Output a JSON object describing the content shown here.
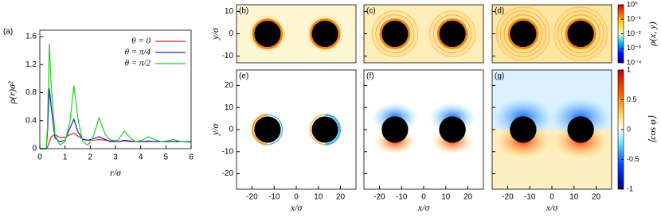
{
  "chart_data": [
    {
      "type": "line",
      "panel_label": "(a)",
      "xlabel": "r/σ",
      "ylabel": "ρ(r)σ²",
      "x": [
        0,
        0.25,
        0.3,
        0.38,
        0.45,
        0.6,
        0.8,
        1.0,
        1.2,
        1.35,
        1.5,
        1.7,
        1.9,
        2.1,
        2.35,
        2.6,
        2.8,
        3.1,
        3.35,
        3.6,
        3.8,
        4.05,
        4.3,
        4.55,
        4.8,
        5.05,
        5.3,
        5.6,
        6
      ],
      "series": [
        {
          "name": "θ = 0",
          "color": "#e02020",
          "values": [
            0,
            0,
            0.02,
            0.1,
            0.17,
            0.2,
            0.16,
            0.16,
            0.2,
            0.22,
            0.18,
            0.14,
            0.12,
            0.12,
            0.13,
            0.12,
            0.11,
            0.1,
            0.11,
            0.1,
            0.1,
            0.1,
            0.1,
            0.1,
            0.1,
            0.1,
            0.1,
            0.1,
            0.1
          ]
        },
        {
          "name": "θ = π/4",
          "color": "#2020d0",
          "values": [
            0,
            0,
            0.2,
            0.86,
            0.6,
            0.15,
            0.1,
            0.12,
            0.3,
            0.42,
            0.25,
            0.13,
            0.12,
            0.14,
            0.17,
            0.13,
            0.1,
            0.1,
            0.12,
            0.11,
            0.1,
            0.1,
            0.11,
            0.1,
            0.1,
            0.1,
            0.1,
            0.1,
            0.1
          ]
        },
        {
          "name": "θ = π/2",
          "color": "#20d020",
          "values": [
            0,
            0,
            0.3,
            1.5,
            0.9,
            0.2,
            0.05,
            0.1,
            0.4,
            0.9,
            0.45,
            0.1,
            0.05,
            0.15,
            0.44,
            0.2,
            0.12,
            0.12,
            0.25,
            0.15,
            0.1,
            0.12,
            0.17,
            0.13,
            0.1,
            0.11,
            0.13,
            0.1,
            0.09
          ]
        }
      ],
      "xlim": [
        0,
        6
      ],
      "ylim": [
        0,
        1.6
      ],
      "xticks": [
        0,
        1,
        2,
        3,
        4,
        5,
        6
      ],
      "yticks": [
        0,
        0.4,
        0.8,
        1.2,
        1.6
      ],
      "legend": "upper right"
    },
    {
      "type": "heatmap",
      "colormap": "jet",
      "panel_labels": [
        "(b)",
        "(c)",
        "(d)"
      ],
      "ylabel": "y/σ",
      "xlim": [
        -27,
        27
      ],
      "ylim": [
        -13,
        13
      ],
      "yticks": [
        -10,
        0,
        10
      ],
      "colorbar": {
        "label": "ρ(x, y)",
        "log": true,
        "lim": [
          0.0001,
          1
        ],
        "ticks": [
          {
            "value": 1,
            "label": "10⁰"
          },
          {
            "value": 0.1,
            "label": "10⁻¹"
          },
          {
            "value": 0.01,
            "label": "10⁻²"
          },
          {
            "value": 0.001,
            "label": "10⁻³"
          },
          {
            "value": 0.0001,
            "label": "10⁻⁴"
          }
        ]
      }
    },
    {
      "type": "heatmap",
      "colormap": "diverging",
      "panel_labels": [
        "(e)",
        "(f)",
        "(g)"
      ],
      "xlabel": "x/σ",
      "ylabel": "y/σ",
      "xlim": [
        -27,
        27
      ],
      "ylim": [
        -27,
        27
      ],
      "xticks": [
        -20,
        -10,
        0,
        10,
        20
      ],
      "yticks": [
        -20,
        -10,
        0,
        10,
        20
      ],
      "colorbar": {
        "label": "⟨cos φ⟩",
        "log": false,
        "lim": [
          -1,
          1
        ],
        "ticks": [
          1,
          0.5,
          0,
          -0.5,
          -1
        ]
      }
    }
  ]
}
